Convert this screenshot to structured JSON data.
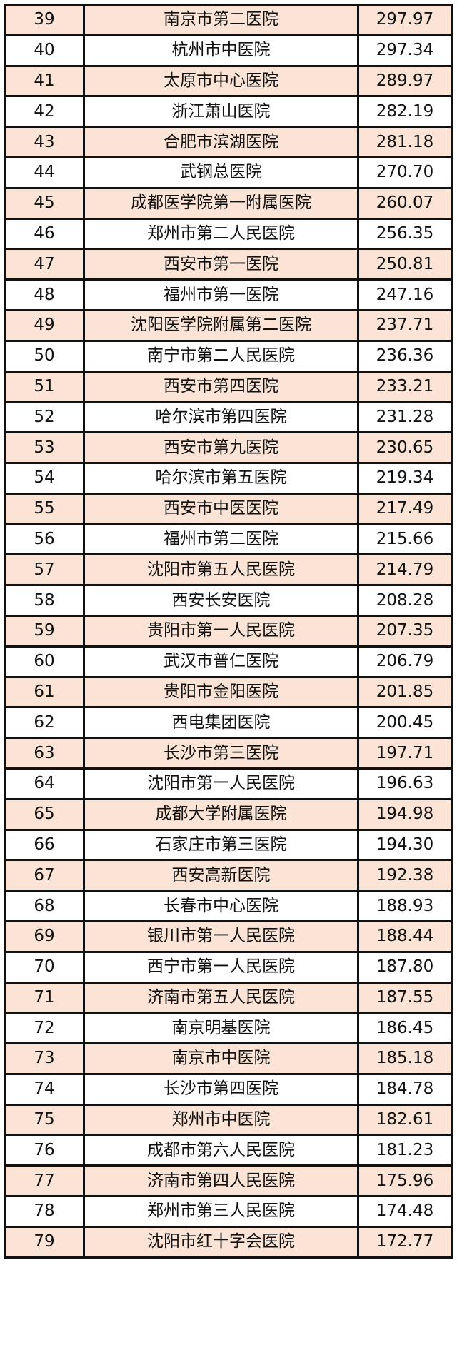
{
  "table": {
    "row_fill_color": "#fbe4d5",
    "rows": [
      {
        "rank": "39",
        "name": "南京市第二医院",
        "score": "297.97"
      },
      {
        "rank": "40",
        "name": "杭州市中医院",
        "score": "297.34"
      },
      {
        "rank": "41",
        "name": "太原市中心医院",
        "score": "289.97"
      },
      {
        "rank": "42",
        "name": "浙江萧山医院",
        "score": "282.19"
      },
      {
        "rank": "43",
        "name": "合肥市滨湖医院",
        "score": "281.18"
      },
      {
        "rank": "44",
        "name": "武钢总医院",
        "score": "270.70"
      },
      {
        "rank": "45",
        "name": "成都医学院第一附属医院",
        "score": "260.07"
      },
      {
        "rank": "46",
        "name": "郑州市第二人民医院",
        "score": "256.35"
      },
      {
        "rank": "47",
        "name": "西安市第一医院",
        "score": "250.81"
      },
      {
        "rank": "48",
        "name": "福州市第一医院",
        "score": "247.16"
      },
      {
        "rank": "49",
        "name": "沈阳医学院附属第二医院",
        "score": "237.71"
      },
      {
        "rank": "50",
        "name": "南宁市第二人民医院",
        "score": "236.36"
      },
      {
        "rank": "51",
        "name": "西安市第四医院",
        "score": "233.21"
      },
      {
        "rank": "52",
        "name": "哈尔滨市第四医院",
        "score": "231.28"
      },
      {
        "rank": "53",
        "name": "西安市第九医院",
        "score": "230.65"
      },
      {
        "rank": "54",
        "name": "哈尔滨市第五医院",
        "score": "219.34"
      },
      {
        "rank": "55",
        "name": "西安市中医医院",
        "score": "217.49"
      },
      {
        "rank": "56",
        "name": "福州市第二医院",
        "score": "215.66"
      },
      {
        "rank": "57",
        "name": "沈阳市第五人民医院",
        "score": "214.79"
      },
      {
        "rank": "58",
        "name": "西安长安医院",
        "score": "208.28"
      },
      {
        "rank": "59",
        "name": "贵阳市第一人民医院",
        "score": "207.35"
      },
      {
        "rank": "60",
        "name": "武汉市普仁医院",
        "score": "206.79"
      },
      {
        "rank": "61",
        "name": "贵阳市金阳医院",
        "score": "201.85"
      },
      {
        "rank": "62",
        "name": "西电集团医院",
        "score": "200.45"
      },
      {
        "rank": "63",
        "name": "长沙市第三医院",
        "score": "197.71"
      },
      {
        "rank": "64",
        "name": "沈阳市第一人民医院",
        "score": "196.63"
      },
      {
        "rank": "65",
        "name": "成都大学附属医院",
        "score": "194.98"
      },
      {
        "rank": "66",
        "name": "石家庄市第三医院",
        "score": "194.30"
      },
      {
        "rank": "67",
        "name": "西安高新医院",
        "score": "192.38"
      },
      {
        "rank": "68",
        "name": "长春市中心医院",
        "score": "188.93"
      },
      {
        "rank": "69",
        "name": "银川市第一人民医院",
        "score": "188.44"
      },
      {
        "rank": "70",
        "name": "西宁市第一人民医院",
        "score": "187.80"
      },
      {
        "rank": "71",
        "name": "济南市第五人民医院",
        "score": "187.55"
      },
      {
        "rank": "72",
        "name": "南京明基医院",
        "score": "186.45"
      },
      {
        "rank": "73",
        "name": "南京市中医院",
        "score": "185.18"
      },
      {
        "rank": "74",
        "name": "长沙市第四医院",
        "score": "184.78"
      },
      {
        "rank": "75",
        "name": "郑州市中医院",
        "score": "182.61"
      },
      {
        "rank": "76",
        "name": "成都市第六人民医院",
        "score": "181.23"
      },
      {
        "rank": "77",
        "name": "济南市第四人民医院",
        "score": "175.96"
      },
      {
        "rank": "78",
        "name": "郑州市第三人民医院",
        "score": "174.48"
      },
      {
        "rank": "79",
        "name": "沈阳市红十字会医院",
        "score": "172.77"
      }
    ]
  }
}
